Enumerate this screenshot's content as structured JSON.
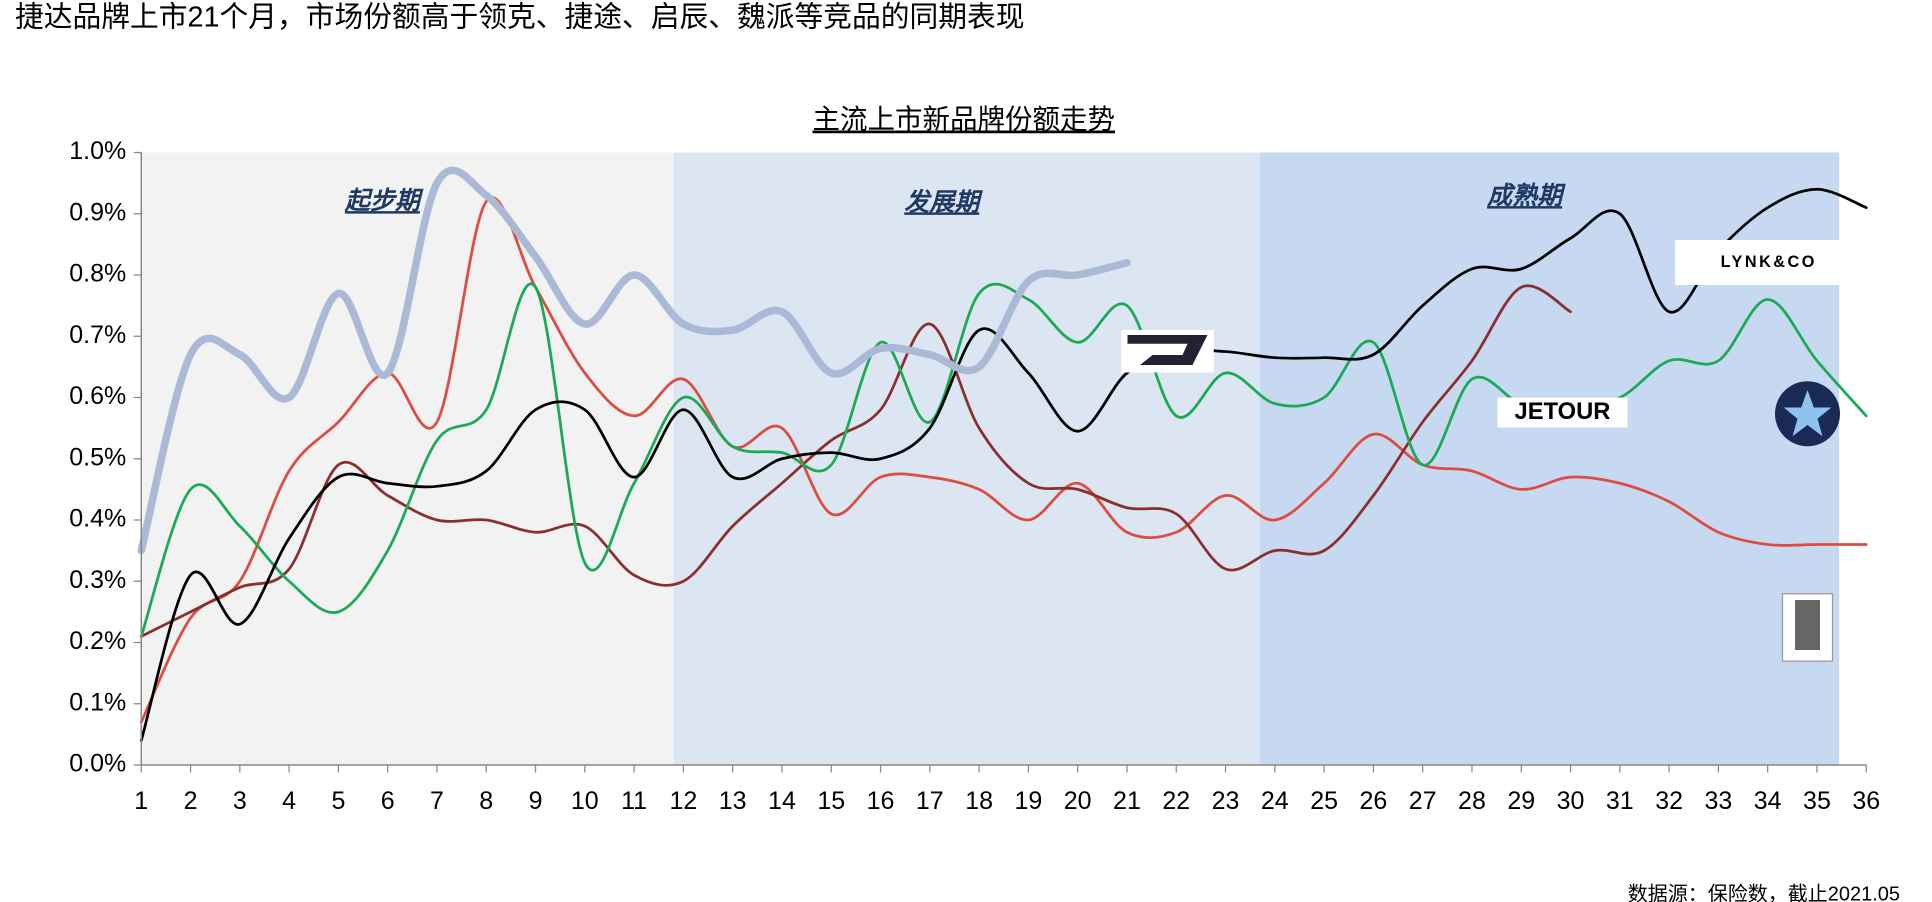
{
  "title": "捷达品牌上市21个月，市场份额高于领克、捷途、启辰、魏派等竞品的同期表现",
  "source": "数据源：保险数，截止2021.05",
  "chart_data": {
    "type": "line",
    "title": "主流上市新品牌份额走势",
    "x": [
      1,
      2,
      3,
      4,
      5,
      6,
      7,
      8,
      9,
      10,
      11,
      12,
      13,
      14,
      15,
      16,
      17,
      18,
      19,
      20,
      21,
      22,
      23,
      24,
      25,
      26,
      27,
      28,
      29,
      30,
      31,
      32,
      33,
      34,
      35,
      36
    ],
    "xlim": [
      1,
      36
    ],
    "xticks": [
      1,
      2,
      3,
      4,
      5,
      6,
      7,
      8,
      9,
      10,
      11,
      12,
      13,
      14,
      15,
      16,
      17,
      18,
      19,
      20,
      21,
      22,
      23,
      24,
      25,
      26,
      27,
      28,
      29,
      30,
      31,
      32,
      33,
      34,
      35,
      36
    ],
    "ylim": [
      0,
      1.0
    ],
    "yticks": [
      {
        "value": 0,
        "label": "0.0%"
      },
      {
        "value": 0.1,
        "label": "0.1%"
      },
      {
        "value": 0.2,
        "label": "0.2%"
      },
      {
        "value": 0.3,
        "label": "0.3%"
      },
      {
        "value": 0.4,
        "label": "0.4%"
      },
      {
        "value": 0.5,
        "label": "0.5%"
      },
      {
        "value": 0.6,
        "label": "0.6%"
      },
      {
        "value": 0.7,
        "label": "0.7%"
      },
      {
        "value": 0.8,
        "label": "0.8%"
      },
      {
        "value": 0.9,
        "label": "0.9%"
      },
      {
        "value": 1.0,
        "label": "1.0%"
      }
    ],
    "regions": [
      {
        "label": "起步期",
        "x0": 1,
        "x1": 11.8,
        "color": "#f2f2f2"
      },
      {
        "label": "发展期",
        "x0": 11.8,
        "x1": 23.7,
        "color": "#dce6f2"
      },
      {
        "label": "成熟期",
        "x0": 23.7,
        "x1": 35.45,
        "color": "#c6d9f1"
      }
    ],
    "series": [
      {
        "color": "#dc4c40",
        "values": [
          0.07,
          0.24,
          0.3,
          0.48,
          0.56,
          0.64,
          0.56,
          0.92,
          0.78,
          0.64,
          0.57,
          0.63,
          0.52,
          0.55,
          0.41,
          0.47,
          0.47,
          0.45,
          0.4,
          0.46,
          0.38,
          0.38,
          0.44,
          0.4,
          0.46,
          0.54,
          0.49,
          0.48,
          0.45,
          0.47,
          0.46,
          0.43,
          0.38,
          0.36,
          0.36,
          0.36
        ]
      },
      {
        "color": "#8b2e2e",
        "values": [
          0.21,
          0.25,
          0.29,
          0.32,
          0.49,
          0.44,
          0.4,
          0.4,
          0.38,
          0.39,
          0.31,
          0.3,
          0.39,
          0.46,
          0.53,
          0.58,
          0.72,
          0.55,
          0.46,
          0.45,
          0.42,
          0.41,
          0.32,
          0.35,
          0.35,
          0.44,
          0.56,
          0.66,
          0.78,
          0.74,
          null,
          null,
          null,
          null,
          null,
          null
        ]
      },
      {
        "name": "JETOUR",
        "color": "#1aaa55",
        "values": [
          0.21,
          0.45,
          0.39,
          0.3,
          0.25,
          0.35,
          0.53,
          0.58,
          0.78,
          0.33,
          0.46,
          0.6,
          0.52,
          0.51,
          0.49,
          0.69,
          0.56,
          0.77,
          0.76,
          0.69,
          0.75,
          0.57,
          0.64,
          0.59,
          0.6,
          0.69,
          0.49,
          0.63,
          0.59,
          0.59,
          0.6,
          0.66,
          0.66,
          0.76,
          0.66,
          0.57
        ]
      },
      {
        "name": "LYNK&CO",
        "color": "#000000",
        "values": [
          0.04,
          0.31,
          0.23,
          0.37,
          0.47,
          0.46,
          0.455,
          0.48,
          0.58,
          0.58,
          0.47,
          0.58,
          0.47,
          0.5,
          0.51,
          0.5,
          0.55,
          0.71,
          0.64,
          0.545,
          0.64,
          0.675,
          0.675,
          0.665,
          0.665,
          0.67,
          0.75,
          0.81,
          0.81,
          0.86,
          0.9,
          0.74,
          0.84,
          0.91,
          0.94,
          0.91
        ]
      },
      {
        "color": "#aab9d6",
        "width": 6,
        "values": [
          0.35,
          0.67,
          0.67,
          0.6,
          0.77,
          0.64,
          0.95,
          0.93,
          0.83,
          0.72,
          0.8,
          0.72,
          0.71,
          0.74,
          0.64,
          0.68,
          0.67,
          0.65,
          0.79,
          0.8,
          0.82,
          null,
          null,
          null,
          null,
          null,
          null,
          null,
          null,
          null,
          null,
          null,
          null,
          null,
          null,
          null
        ]
      }
    ]
  }
}
